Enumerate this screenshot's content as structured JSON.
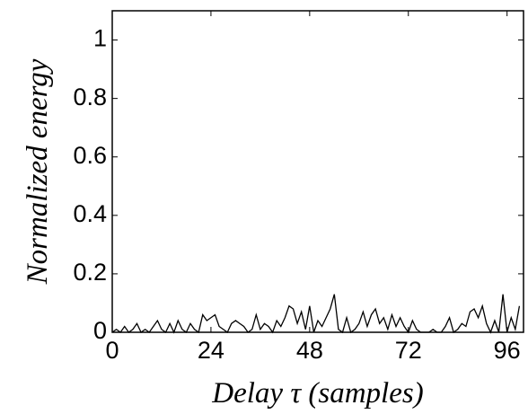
{
  "chart_data": {
    "type": "line",
    "x_label": "Delay τ (samples)",
    "y_label": "Normalized energy",
    "x": [
      0,
      1,
      2,
      3,
      4,
      5,
      6,
      7,
      8,
      9,
      10,
      11,
      12,
      13,
      14,
      15,
      16,
      17,
      18,
      19,
      20,
      21,
      22,
      23,
      24,
      25,
      26,
      27,
      28,
      29,
      30,
      31,
      32,
      33,
      34,
      35,
      36,
      37,
      38,
      39,
      40,
      41,
      42,
      43,
      44,
      45,
      46,
      47,
      48,
      49,
      50,
      51,
      52,
      53,
      54,
      55,
      56,
      57,
      58,
      59,
      60,
      61,
      62,
      63,
      64,
      65,
      66,
      67,
      68,
      69,
      70,
      71,
      72,
      73,
      74,
      75,
      76,
      77,
      78,
      79,
      80,
      81,
      82,
      83,
      84,
      85,
      86,
      87,
      88,
      89,
      90,
      91,
      92,
      93,
      94,
      95,
      96,
      97,
      98,
      99
    ],
    "series": [
      {
        "color": "#000000",
        "values": [
          0,
          0.01,
          0,
          0.02,
          0,
          0.01,
          0.03,
          0,
          0.01,
          0,
          0.02,
          0.04,
          0.01,
          0,
          0.03,
          0,
          0.04,
          0.01,
          0,
          0.03,
          0.01,
          0,
          0.06,
          0.04,
          0.05,
          0.06,
          0.02,
          0.01,
          0,
          0.03,
          0.04,
          0.03,
          0.02,
          0,
          0.01,
          0.06,
          0.01,
          0.03,
          0.02,
          0,
          0.04,
          0.02,
          0.05,
          0.09,
          0.08,
          0.03,
          0.07,
          0.01,
          0.09,
          0,
          0.04,
          0.02,
          0.05,
          0.08,
          0.13,
          0.01,
          0,
          0.05,
          0,
          0.01,
          0.03,
          0.07,
          0.02,
          0.06,
          0.08,
          0.03,
          0.05,
          0.01,
          0.06,
          0.02,
          0.05,
          0.02,
          0,
          0.04,
          0.01,
          0,
          0,
          0,
          0.01,
          0,
          0,
          0.02,
          0.05,
          0,
          0.01,
          0.03,
          0.02,
          0.07,
          0.08,
          0.05,
          0.09,
          0.03,
          0,
          0.04,
          0,
          0.13,
          0,
          0.05,
          0.01,
          0.09
        ]
      }
    ],
    "xlim": [
      0,
      100
    ],
    "xticks": [
      0,
      24,
      48,
      72,
      96
    ],
    "ylim": [
      0,
      1.1
    ],
    "yticks": [
      0,
      0.2,
      0.4,
      0.6,
      0.8,
      1
    ]
  }
}
